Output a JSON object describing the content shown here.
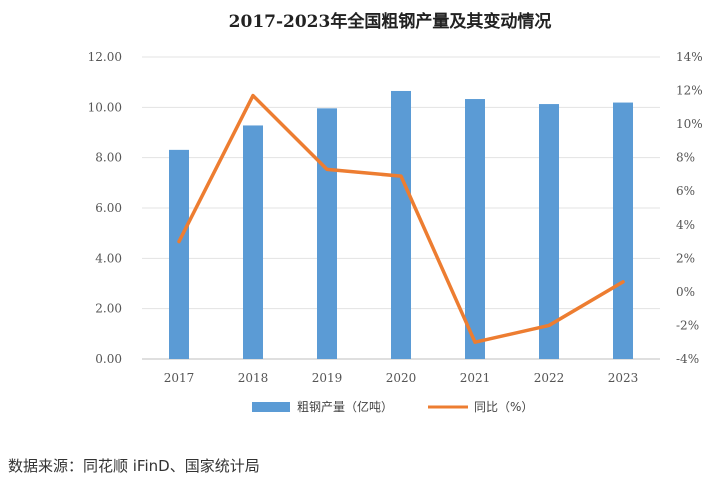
{
  "chart_data": {
    "type": "bar",
    "title": "2017-2023年全国粗钢产量及其变动情况",
    "categories": [
      "2017",
      "2018",
      "2019",
      "2020",
      "2021",
      "2022",
      "2023"
    ],
    "series": [
      {
        "name": "粗钢产量（亿吨）",
        "type": "bar",
        "axis": "left",
        "values": [
          8.31,
          9.28,
          9.96,
          10.65,
          10.33,
          10.13,
          10.19
        ],
        "color": "#5b9bd5"
      },
      {
        "name": "同比（%）",
        "type": "line",
        "axis": "right",
        "values": [
          3.0,
          11.7,
          7.3,
          6.9,
          -3.0,
          -2.0,
          0.6
        ],
        "color": "#ed7d31"
      }
    ],
    "y_left": {
      "ylim": [
        0,
        12
      ],
      "ticks": [
        "0.00",
        "2.00",
        "4.00",
        "6.00",
        "8.00",
        "10.00",
        "12.00"
      ]
    },
    "y_right": {
      "ylim": [
        -4,
        14
      ],
      "ticks": [
        "-4%",
        "-2%",
        "0%",
        "2%",
        "4%",
        "6%",
        "8%",
        "10%",
        "12%",
        "14%"
      ]
    },
    "grid": true,
    "legend_position": "bottom"
  },
  "source_text": "数据来源：同花顺 iFinD、国家统计局"
}
